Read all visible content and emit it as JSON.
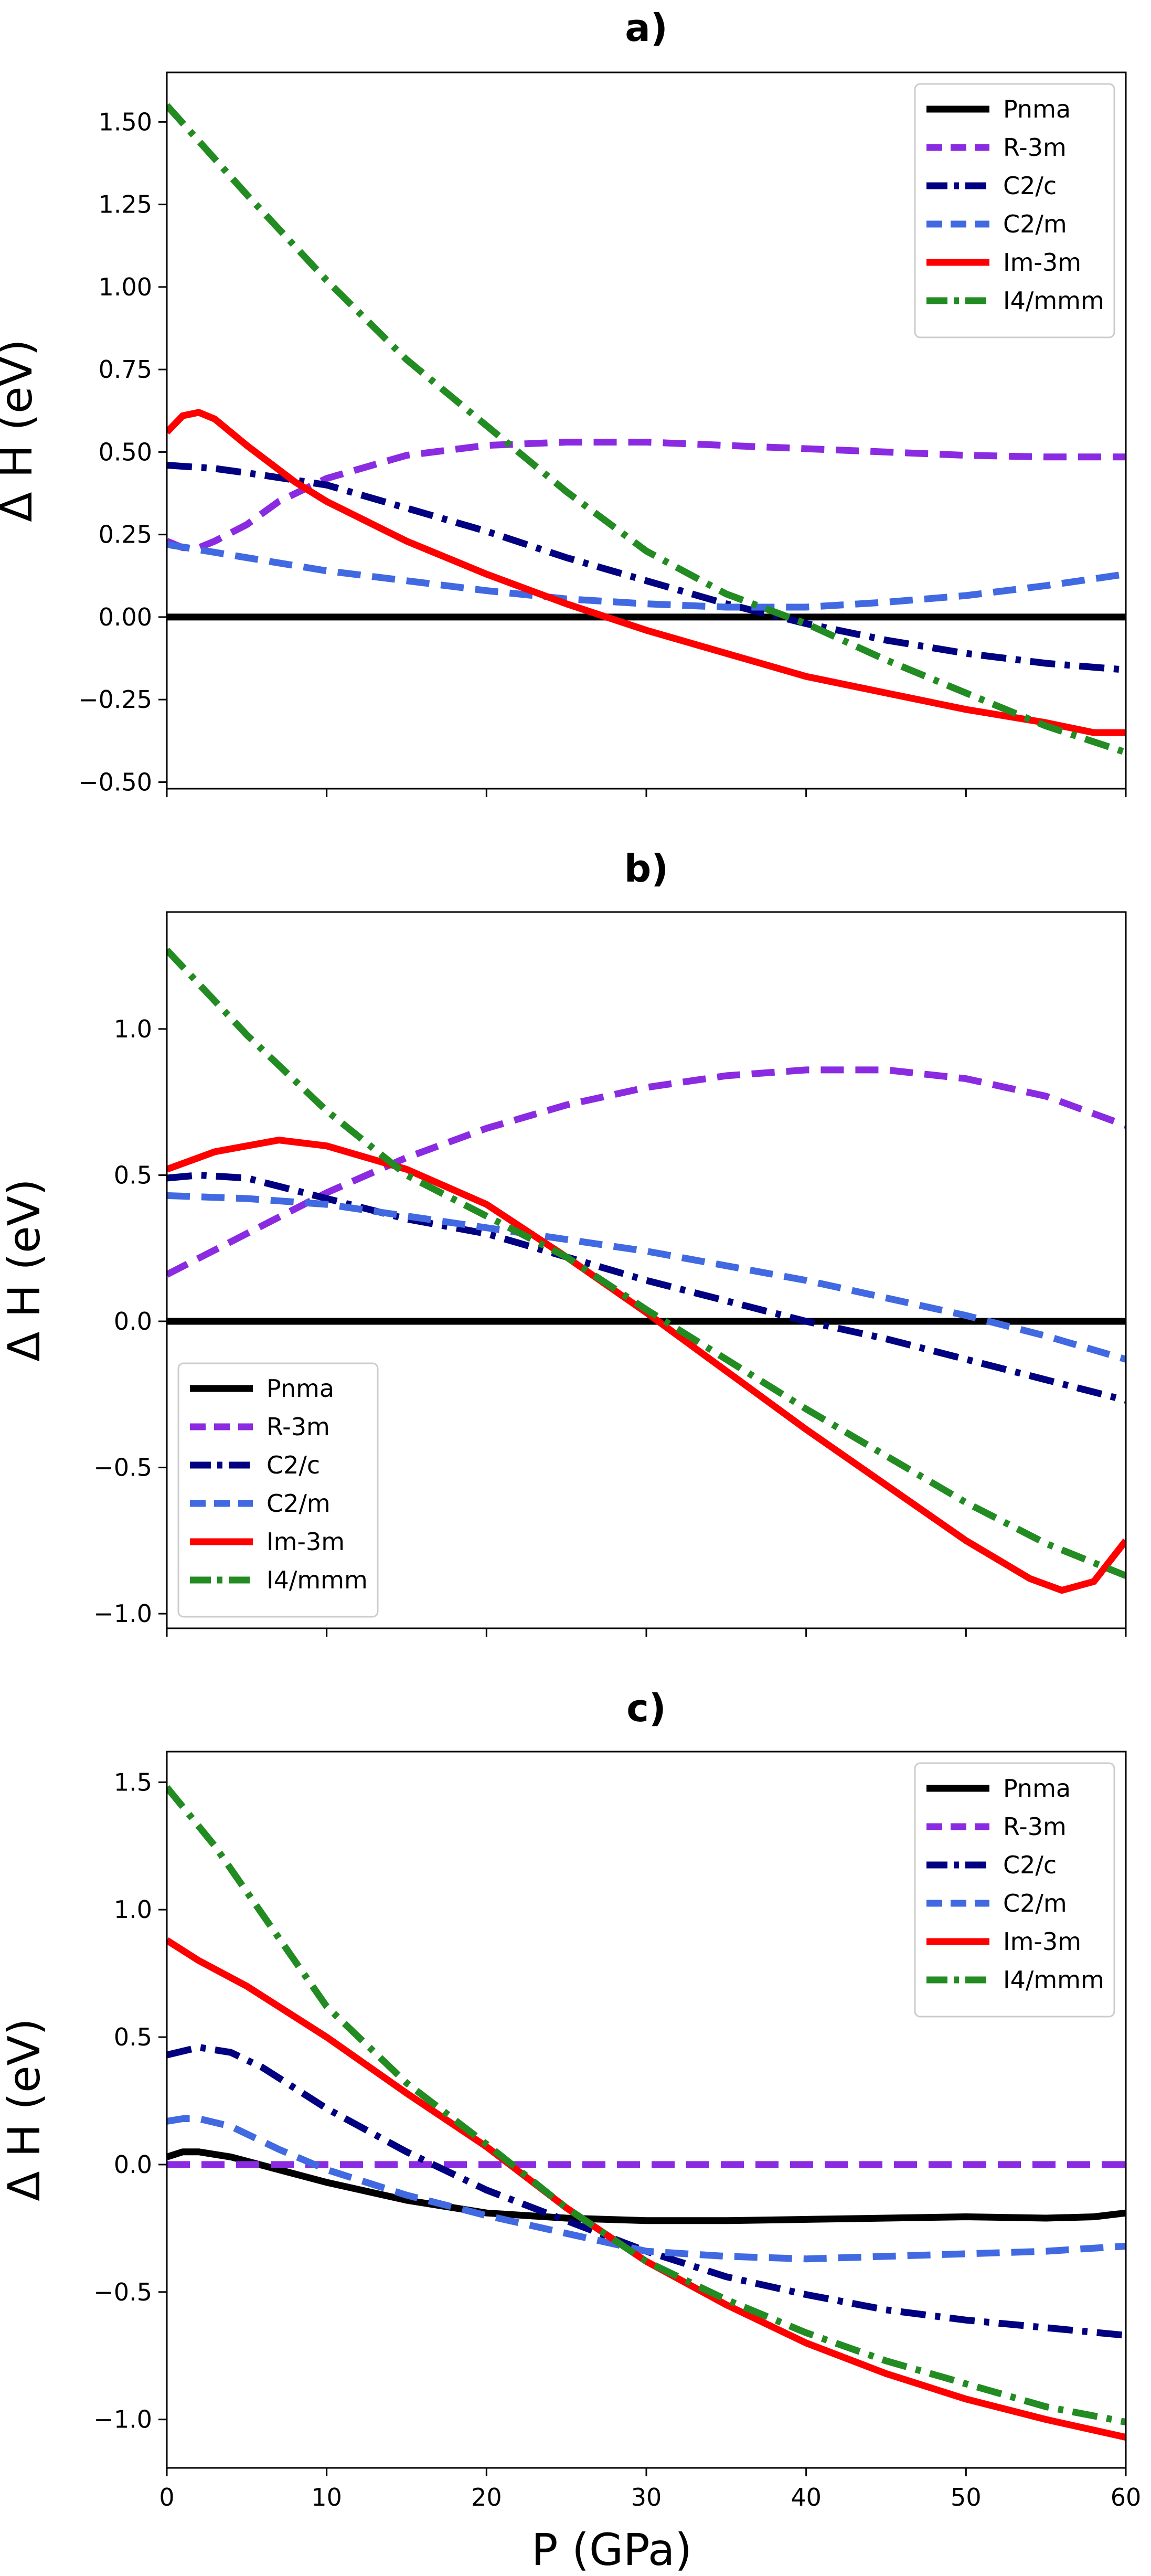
{
  "figure": {
    "xlabel": "P (GPa)"
  },
  "chart_data": [
    {
      "type": "line",
      "title": "a)",
      "xlabel": "",
      "ylabel": "Δ H (eV)",
      "xlim": [
        0,
        60
      ],
      "ylim": [
        -0.52,
        1.65
      ],
      "xticks": [
        0,
        10,
        20,
        30,
        40,
        50,
        60
      ],
      "xtick_labels": [
        "",
        "",
        "",
        "",
        "",
        "",
        ""
      ],
      "yticks": [
        -0.5,
        -0.25,
        0.0,
        0.25,
        0.5,
        0.75,
        1.0,
        1.25,
        1.5
      ],
      "ytick_labels": [
        "−0.50",
        "−0.25",
        "0.00",
        "0.25",
        "0.50",
        "0.75",
        "1.00",
        "1.25",
        "1.50"
      ],
      "legend_position": "upper-right",
      "series": [
        {
          "name": "Pnma",
          "color": "#000000",
          "style": "solid",
          "points": [
            [
              0,
              0
            ],
            [
              60,
              0
            ]
          ]
        },
        {
          "name": "R-3m",
          "color": "#8a2be2",
          "style": "dashed",
          "points": [
            [
              0,
              0.23
            ],
            [
              1,
              0.21
            ],
            [
              2,
              0.21
            ],
            [
              3,
              0.23
            ],
            [
              5,
              0.28
            ],
            [
              7,
              0.35
            ],
            [
              10,
              0.42
            ],
            [
              15,
              0.49
            ],
            [
              20,
              0.52
            ],
            [
              25,
              0.53
            ],
            [
              30,
              0.53
            ],
            [
              35,
              0.52
            ],
            [
              40,
              0.51
            ],
            [
              45,
              0.5
            ],
            [
              50,
              0.49
            ],
            [
              55,
              0.485
            ],
            [
              60,
              0.485
            ]
          ]
        },
        {
          "name": "C2/c",
          "color": "#000080",
          "style": "dashdot",
          "points": [
            [
              0,
              0.46
            ],
            [
              3,
              0.45
            ],
            [
              6,
              0.43
            ],
            [
              10,
              0.4
            ],
            [
              15,
              0.33
            ],
            [
              20,
              0.26
            ],
            [
              25,
              0.18
            ],
            [
              30,
              0.11
            ],
            [
              35,
              0.04
            ],
            [
              40,
              -0.02
            ],
            [
              45,
              -0.07
            ],
            [
              50,
              -0.11
            ],
            [
              55,
              -0.14
            ],
            [
              60,
              -0.16
            ]
          ]
        },
        {
          "name": "C2/m",
          "color": "#4169e1",
          "style": "dashed",
          "points": [
            [
              0,
              0.22
            ],
            [
              5,
              0.18
            ],
            [
              10,
              0.14
            ],
            [
              15,
              0.11
            ],
            [
              20,
              0.08
            ],
            [
              25,
              0.055
            ],
            [
              30,
              0.04
            ],
            [
              35,
              0.03
            ],
            [
              40,
              0.03
            ],
            [
              45,
              0.045
            ],
            [
              50,
              0.065
            ],
            [
              55,
              0.095
            ],
            [
              60,
              0.13
            ]
          ]
        },
        {
          "name": "Im-3m",
          "color": "#ff0000",
          "style": "solid",
          "points": [
            [
              0,
              0.56
            ],
            [
              1,
              0.61
            ],
            [
              2,
              0.62
            ],
            [
              3,
              0.6
            ],
            [
              5,
              0.52
            ],
            [
              8,
              0.41
            ],
            [
              10,
              0.35
            ],
            [
              15,
              0.23
            ],
            [
              20,
              0.13
            ],
            [
              25,
              0.04
            ],
            [
              30,
              -0.04
            ],
            [
              35,
              -0.11
            ],
            [
              40,
              -0.18
            ],
            [
              45,
              -0.23
            ],
            [
              50,
              -0.28
            ],
            [
              55,
              -0.32
            ],
            [
              58,
              -0.35
            ],
            [
              60,
              -0.35
            ]
          ]
        },
        {
          "name": "I4/mmm",
          "color": "#228b22",
          "style": "dashdot",
          "points": [
            [
              0,
              1.55
            ],
            [
              5,
              1.28
            ],
            [
              10,
              1.02
            ],
            [
              15,
              0.78
            ],
            [
              20,
              0.58
            ],
            [
              25,
              0.38
            ],
            [
              30,
              0.2
            ],
            [
              35,
              0.07
            ],
            [
              40,
              -0.02
            ],
            [
              45,
              -0.13
            ],
            [
              50,
              -0.23
            ],
            [
              55,
              -0.33
            ],
            [
              60,
              -0.41
            ]
          ]
        }
      ]
    },
    {
      "type": "line",
      "title": "b)",
      "xlabel": "",
      "ylabel": "Δ H (eV)",
      "xlim": [
        0,
        60
      ],
      "ylim": [
        -1.05,
        1.4
      ],
      "xticks": [
        0,
        10,
        20,
        30,
        40,
        50,
        60
      ],
      "xtick_labels": [
        "",
        "",
        "",
        "",
        "",
        "",
        ""
      ],
      "yticks": [
        -1.0,
        -0.5,
        0.0,
        0.5,
        1.0
      ],
      "ytick_labels": [
        "−1.0",
        "−0.5",
        "0.0",
        "0.5",
        "1.0"
      ],
      "legend_position": "lower-left",
      "series": [
        {
          "name": "Pnma",
          "color": "#000000",
          "style": "solid",
          "points": [
            [
              0,
              0
            ],
            [
              60,
              0
            ]
          ]
        },
        {
          "name": "R-3m",
          "color": "#8a2be2",
          "style": "dashed",
          "points": [
            [
              0,
              0.16
            ],
            [
              5,
              0.3
            ],
            [
              10,
              0.44
            ],
            [
              15,
              0.56
            ],
            [
              20,
              0.66
            ],
            [
              25,
              0.74
            ],
            [
              30,
              0.8
            ],
            [
              35,
              0.84
            ],
            [
              40,
              0.86
            ],
            [
              45,
              0.86
            ],
            [
              50,
              0.83
            ],
            [
              55,
              0.77
            ],
            [
              60,
              0.67
            ]
          ]
        },
        {
          "name": "C2/c",
          "color": "#000080",
          "style": "dashdot",
          "points": [
            [
              0,
              0.49
            ],
            [
              2,
              0.5
            ],
            [
              5,
              0.49
            ],
            [
              10,
              0.42
            ],
            [
              15,
              0.35
            ],
            [
              20,
              0.3
            ],
            [
              25,
              0.22
            ],
            [
              30,
              0.14
            ],
            [
              35,
              0.07
            ],
            [
              40,
              0.0
            ],
            [
              45,
              -0.06
            ],
            [
              50,
              -0.13
            ],
            [
              55,
              -0.2
            ],
            [
              60,
              -0.27
            ]
          ]
        },
        {
          "name": "C2/m",
          "color": "#4169e1",
          "style": "dashed",
          "points": [
            [
              0,
              0.43
            ],
            [
              5,
              0.42
            ],
            [
              10,
              0.4
            ],
            [
              15,
              0.36
            ],
            [
              20,
              0.32
            ],
            [
              25,
              0.28
            ],
            [
              30,
              0.24
            ],
            [
              35,
              0.19
            ],
            [
              40,
              0.14
            ],
            [
              45,
              0.08
            ],
            [
              50,
              0.02
            ],
            [
              55,
              -0.05
            ],
            [
              60,
              -0.13
            ]
          ]
        },
        {
          "name": "Im-3m",
          "color": "#ff0000",
          "style": "solid",
          "points": [
            [
              0,
              0.52
            ],
            [
              3,
              0.58
            ],
            [
              7,
              0.62
            ],
            [
              10,
              0.6
            ],
            [
              15,
              0.52
            ],
            [
              20,
              0.4
            ],
            [
              25,
              0.22
            ],
            [
              30,
              0.03
            ],
            [
              35,
              -0.17
            ],
            [
              40,
              -0.37
            ],
            [
              45,
              -0.56
            ],
            [
              50,
              -0.75
            ],
            [
              54,
              -0.88
            ],
            [
              56,
              -0.92
            ],
            [
              58,
              -0.89
            ],
            [
              60,
              -0.75
            ]
          ]
        },
        {
          "name": "I4/mmm",
          "color": "#228b22",
          "style": "dashdot",
          "points": [
            [
              0,
              1.27
            ],
            [
              5,
              0.98
            ],
            [
              10,
              0.72
            ],
            [
              15,
              0.5
            ],
            [
              20,
              0.36
            ],
            [
              25,
              0.22
            ],
            [
              30,
              0.04
            ],
            [
              35,
              -0.13
            ],
            [
              40,
              -0.3
            ],
            [
              45,
              -0.46
            ],
            [
              50,
              -0.62
            ],
            [
              55,
              -0.76
            ],
            [
              60,
              -0.87
            ]
          ]
        }
      ]
    },
    {
      "type": "line",
      "title": "c)",
      "xlabel": "P (GPa)",
      "ylabel": "Δ H (eV)",
      "xlim": [
        0,
        60
      ],
      "ylim": [
        -1.19,
        1.62
      ],
      "xticks": [
        0,
        10,
        20,
        30,
        40,
        50,
        60
      ],
      "xtick_labels": [
        "0",
        "10",
        "20",
        "30",
        "40",
        "50",
        "60"
      ],
      "yticks": [
        -1.0,
        -0.5,
        0.0,
        0.5,
        1.0,
        1.5
      ],
      "ytick_labels": [
        "−1.0",
        "−0.5",
        "0.0",
        "0.5",
        "1.0",
        "1.5"
      ],
      "legend_position": "upper-right",
      "series": [
        {
          "name": "Pnma",
          "color": "#000000",
          "style": "solid",
          "points": [
            [
              0,
              0.03
            ],
            [
              1,
              0.05
            ],
            [
              2,
              0.05
            ],
            [
              4,
              0.03
            ],
            [
              7,
              -0.02
            ],
            [
              10,
              -0.07
            ],
            [
              15,
              -0.14
            ],
            [
              20,
              -0.19
            ],
            [
              25,
              -0.21
            ],
            [
              30,
              -0.22
            ],
            [
              35,
              -0.22
            ],
            [
              40,
              -0.215
            ],
            [
              45,
              -0.21
            ],
            [
              50,
              -0.205
            ],
            [
              55,
              -0.21
            ],
            [
              58,
              -0.205
            ],
            [
              60,
              -0.19
            ]
          ]
        },
        {
          "name": "R-3m",
          "color": "#8a2be2",
          "style": "dashed",
          "points": [
            [
              0,
              0
            ],
            [
              60,
              0
            ]
          ]
        },
        {
          "name": "C2/c",
          "color": "#000080",
          "style": "dashdot",
          "points": [
            [
              0,
              0.43
            ],
            [
              2,
              0.46
            ],
            [
              4,
              0.44
            ],
            [
              6,
              0.38
            ],
            [
              10,
              0.22
            ],
            [
              15,
              0.05
            ],
            [
              20,
              -0.1
            ],
            [
              25,
              -0.22
            ],
            [
              30,
              -0.34
            ],
            [
              35,
              -0.44
            ],
            [
              40,
              -0.51
            ],
            [
              45,
              -0.57
            ],
            [
              50,
              -0.61
            ],
            [
              55,
              -0.64
            ],
            [
              60,
              -0.67
            ]
          ]
        },
        {
          "name": "C2/m",
          "color": "#4169e1",
          "style": "dashed",
          "points": [
            [
              0,
              0.17
            ],
            [
              1,
              0.18
            ],
            [
              2,
              0.18
            ],
            [
              4,
              0.15
            ],
            [
              7,
              0.06
            ],
            [
              10,
              -0.02
            ],
            [
              15,
              -0.12
            ],
            [
              20,
              -0.2
            ],
            [
              25,
              -0.27
            ],
            [
              30,
              -0.34
            ],
            [
              35,
              -0.36
            ],
            [
              40,
              -0.37
            ],
            [
              45,
              -0.36
            ],
            [
              50,
              -0.35
            ],
            [
              55,
              -0.34
            ],
            [
              60,
              -0.32
            ]
          ]
        },
        {
          "name": "Im-3m",
          "color": "#ff0000",
          "style": "solid",
          "points": [
            [
              0,
              0.88
            ],
            [
              2,
              0.8
            ],
            [
              5,
              0.7
            ],
            [
              10,
              0.5
            ],
            [
              15,
              0.28
            ],
            [
              20,
              0.07
            ],
            [
              25,
              -0.17
            ],
            [
              30,
              -0.38
            ],
            [
              35,
              -0.55
            ],
            [
              40,
              -0.7
            ],
            [
              45,
              -0.82
            ],
            [
              50,
              -0.92
            ],
            [
              55,
              -1.0
            ],
            [
              60,
              -1.07
            ]
          ]
        },
        {
          "name": "I4/mmm",
          "color": "#228b22",
          "style": "dashdot",
          "points": [
            [
              0,
              1.48
            ],
            [
              3,
              1.25
            ],
            [
              6,
              0.98
            ],
            [
              10,
              0.62
            ],
            [
              15,
              0.32
            ],
            [
              20,
              0.08
            ],
            [
              25,
              -0.17
            ],
            [
              30,
              -0.38
            ],
            [
              35,
              -0.53
            ],
            [
              40,
              -0.66
            ],
            [
              45,
              -0.77
            ],
            [
              50,
              -0.86
            ],
            [
              55,
              -0.95
            ],
            [
              60,
              -1.01
            ]
          ]
        }
      ]
    }
  ]
}
